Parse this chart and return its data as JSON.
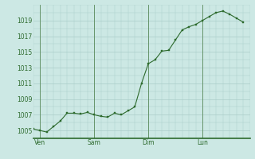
{
  "background_color": "#cce8e4",
  "line_color": "#2d6a2d",
  "marker_color": "#2d6a2d",
  "grid_color": "#aaccc8",
  "tick_label_color": "#2d6a2d",
  "spine_color": "#2d6a2d",
  "vline_color": "#5a8a5a",
  "x_tick_labels": [
    "Ven",
    "Sam",
    "Dim",
    "Lun"
  ],
  "x_tick_positions": [
    1,
    9,
    17,
    25
  ],
  "ylim": [
    1004.0,
    1021.0
  ],
  "yticks": [
    1005,
    1007,
    1009,
    1011,
    1013,
    1015,
    1017,
    1019
  ],
  "xlim": [
    0,
    32
  ],
  "y_values": [
    1005.2,
    1005.0,
    1004.8,
    1005.5,
    1006.2,
    1007.2,
    1007.2,
    1007.1,
    1007.3,
    1007.0,
    1006.8,
    1006.7,
    1007.2,
    1007.0,
    1007.5,
    1008.0,
    1011.0,
    1013.5,
    1014.0,
    1015.1,
    1015.2,
    1016.5,
    1017.8,
    1018.2,
    1018.5,
    1019.0,
    1019.5,
    1020.0,
    1020.2,
    1019.8,
    1019.3,
    1018.8
  ]
}
